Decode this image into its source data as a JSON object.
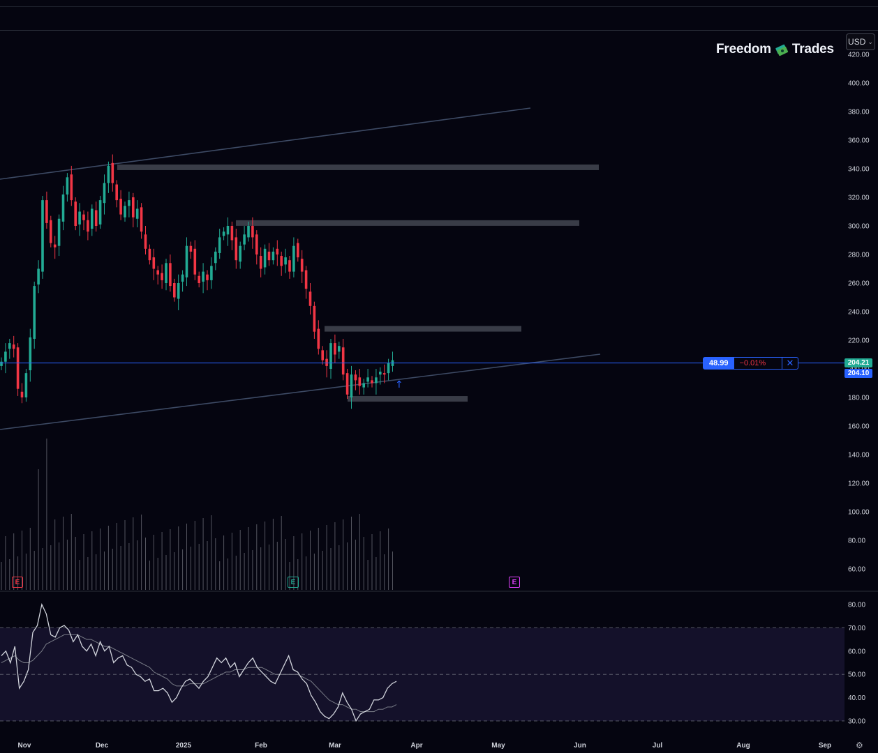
{
  "toolbar": {
    "currency": "USD"
  },
  "brand": {
    "name_left": "Freedom",
    "name_right": "Trades"
  },
  "colors": {
    "up": "#22ab94",
    "down": "#f23645",
    "accent": "#2962ff",
    "level": "#434651",
    "trend": "#3a4660",
    "rsi_band": "#14112a",
    "rsi_line": "#d1d4dc",
    "rsi_ma": "#787b86"
  },
  "price_axis": {
    "labels": [
      "420.00",
      "400.00",
      "380.00",
      "360.00",
      "340.00",
      "320.00",
      "300.00",
      "280.00",
      "260.00",
      "240.00",
      "220.00",
      "200.00",
      "180.00",
      "160.00",
      "140.00",
      "120.00",
      "100.00",
      "80.00",
      "60.00"
    ],
    "values": [
      420,
      400,
      380,
      360,
      340,
      320,
      300,
      280,
      260,
      240,
      220,
      200,
      180,
      160,
      140,
      120,
      100,
      80,
      60
    ]
  },
  "rsi_axis": {
    "labels": [
      "80.00",
      "70.00",
      "60.00",
      "50.00",
      "40.00",
      "30.00"
    ],
    "values": [
      80,
      70,
      60,
      50,
      40,
      30
    ]
  },
  "time_axis": [
    "Nov",
    "Dec",
    "2025",
    "Feb",
    "Mar",
    "Apr",
    "May",
    "Jun",
    "Jul",
    "Aug",
    "Sep"
  ],
  "price_line": {
    "value": "48.99",
    "change": "−0.01%",
    "last_price": "204.21",
    "line_price": "204.10"
  },
  "events": [
    {
      "label": "E",
      "kind": "earnings-past",
      "color": "#f23645"
    },
    {
      "label": "E",
      "kind": "earnings-past",
      "color": "#22ab94"
    },
    {
      "label": "E",
      "kind": "earnings-upcoming",
      "color": "#e040fb"
    }
  ],
  "chart_data": {
    "type": "candlestick",
    "y_range": [
      50,
      430
    ],
    "support_resistance_levels": [
      341,
      302,
      228,
      179
    ],
    "current_line": 204.1,
    "rsi": {
      "range": [
        25,
        85
      ],
      "upper": 70,
      "middle": 50,
      "lower": 30,
      "values": [
        58,
        60,
        55,
        62,
        44,
        47,
        52,
        68,
        71,
        80,
        76,
        67,
        66,
        70,
        71,
        69,
        64,
        67,
        62,
        60,
        63,
        58,
        64,
        60,
        62,
        55,
        57,
        58,
        54,
        53,
        50,
        49,
        47,
        48,
        43,
        43,
        44,
        42,
        38,
        40,
        44,
        47,
        48,
        46,
        44,
        47,
        49,
        53,
        57,
        55,
        57,
        53,
        55,
        49,
        52,
        55,
        57,
        53,
        51,
        49,
        47,
        46,
        50,
        54,
        58,
        52,
        51,
        48,
        46,
        41,
        38,
        34,
        32,
        31,
        33,
        36,
        42,
        38,
        35,
        30,
        33,
        34,
        35,
        39,
        39,
        40,
        44,
        46,
        47
      ],
      "ma": [
        55,
        56,
        57,
        58,
        56,
        55,
        55,
        56,
        58,
        60,
        63,
        64,
        65,
        66,
        67,
        67,
        67,
        67,
        66,
        65,
        65,
        64,
        63,
        62,
        62,
        61,
        60,
        59,
        58,
        57,
        56,
        55,
        54,
        53,
        51,
        50,
        49,
        48,
        46,
        45,
        45,
        45,
        46,
        46,
        46,
        46,
        47,
        48,
        49,
        50,
        51,
        51,
        52,
        52,
        52,
        53,
        53,
        53,
        53,
        52,
        51,
        50,
        50,
        50,
        50,
        50,
        50,
        49,
        48,
        47,
        45,
        43,
        41,
        39,
        38,
        37,
        37,
        36,
        35,
        35,
        34,
        34,
        34,
        34,
        35,
        35,
        36,
        36,
        37
      ]
    }
  }
}
